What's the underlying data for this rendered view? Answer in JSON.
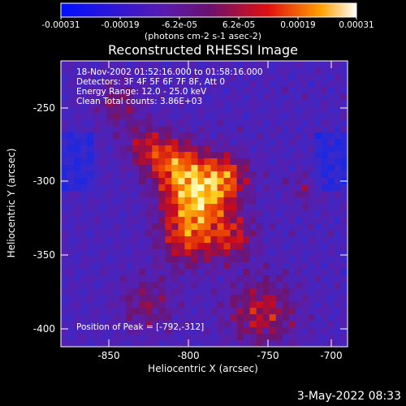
{
  "plot": {
    "title": "Reconstructed RHESSI Image",
    "info_lines": [
      "18-Nov-2002 01:52:16.000 to 01:58:16.000",
      "Detectors: 3F 4F 5F 6F 7F 8F, Att 0",
      "Energy Range: 12.0 - 25.0 keV",
      "Clean     Total counts: 3.86E+03"
    ],
    "peak_label": "Position of Peak = [-792,-312]",
    "xlabel": "Heliocentric X (arcsec)",
    "ylabel": "Heliocentric Y (arcsec)",
    "x_ticks": [
      "-850",
      "-800",
      "-750",
      "-700"
    ],
    "y_ticks": [
      "-250",
      "-300",
      "-350",
      "-400"
    ],
    "x_range": [
      -875,
      -695
    ],
    "y_range": [
      -412,
      -230
    ]
  },
  "colorbar": {
    "unit": "(photons cm-2 s-1 asec-2)",
    "ticks": [
      "-0.00031",
      "-0.00019",
      "-6.2e-05",
      "6.2e-05",
      "0.00019",
      "0.00031"
    ],
    "range": [
      -0.00031,
      0.00031
    ]
  },
  "footer": {
    "date_stamp": "3-May-2022 08:33"
  }
}
